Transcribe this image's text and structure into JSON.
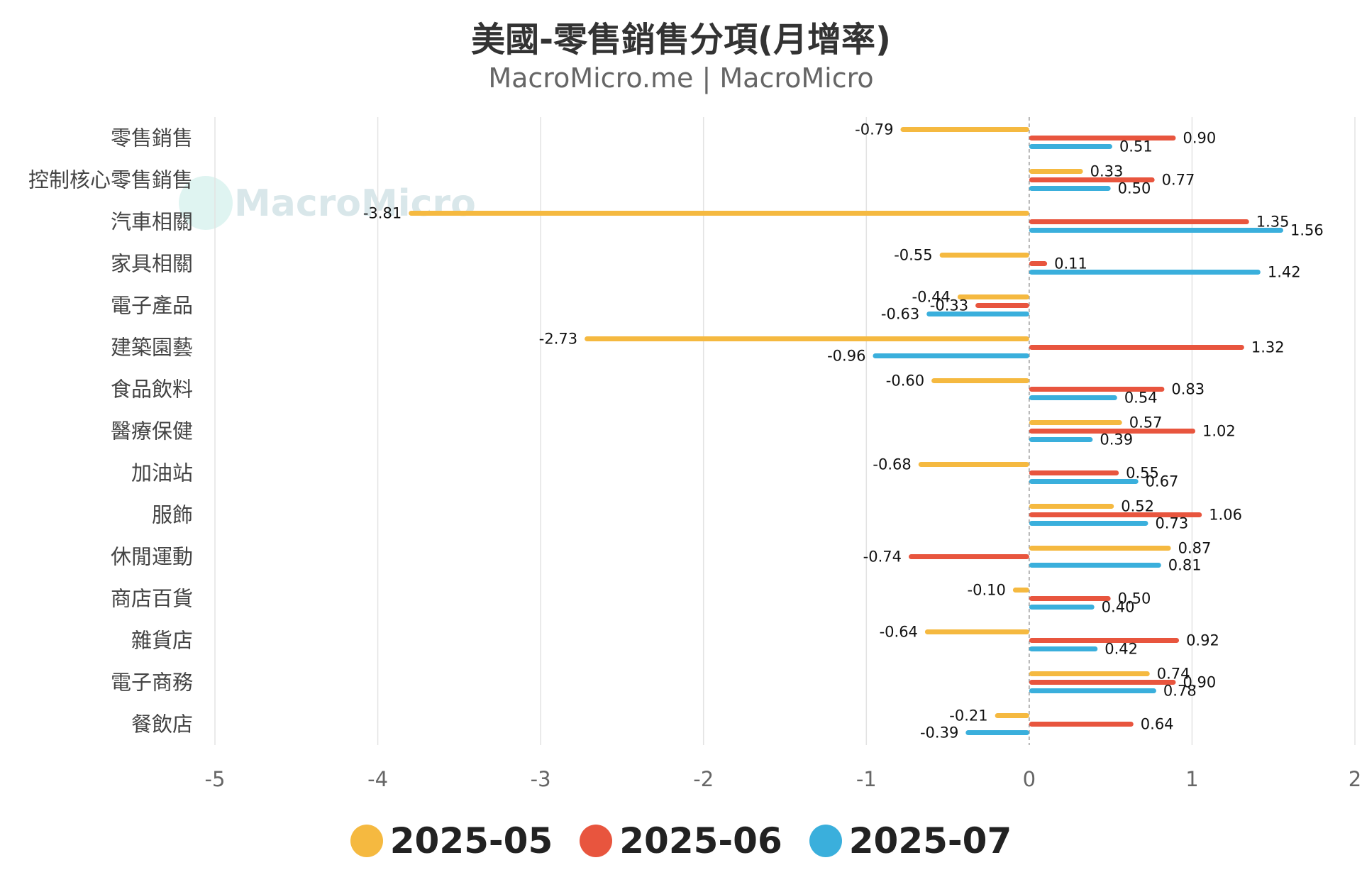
{
  "chart_data": {
    "type": "bar",
    "orientation": "horizontal",
    "title": "美國-零售銷售分項(月增率)",
    "subtitle": "MacroMicro.me | MacroMicro",
    "watermark": "MacroMicro",
    "categories": [
      "零售銷售",
      "控制核心零售銷售",
      "汽車相關",
      "家具相關",
      "電子產品",
      "建築園藝",
      "食品飲料",
      "醫療保健",
      "加油站",
      "服飾",
      "休閒運動",
      "商店百貨",
      "雜貨店",
      "電子商務",
      "餐飲店"
    ],
    "series": [
      {
        "name": "2025-05",
        "color": "#f5b940",
        "values": [
          -0.79,
          0.33,
          -3.81,
          -0.55,
          -0.44,
          -2.73,
          -0.6,
          0.57,
          -0.68,
          0.52,
          0.87,
          -0.1,
          -0.64,
          0.74,
          -0.21
        ]
      },
      {
        "name": "2025-06",
        "color": "#e8553e",
        "values": [
          0.9,
          0.77,
          1.35,
          0.11,
          -0.33,
          1.32,
          0.83,
          1.02,
          0.55,
          1.06,
          -0.74,
          0.5,
          0.92,
          0.9,
          0.64
        ]
      },
      {
        "name": "2025-07",
        "color": "#3aafdc",
        "values": [
          0.51,
          0.5,
          1.56,
          1.42,
          -0.63,
          -0.96,
          0.54,
          0.39,
          0.67,
          0.73,
          0.81,
          0.4,
          0.42,
          0.78,
          -0.39
        ]
      }
    ],
    "xlim": [
      -5,
      2
    ],
    "xticks": [
      -5,
      -4,
      -3,
      -2,
      -1,
      0,
      1,
      2
    ],
    "xlabel": "",
    "ylabel": "",
    "grid": true,
    "legend": "bottom"
  }
}
